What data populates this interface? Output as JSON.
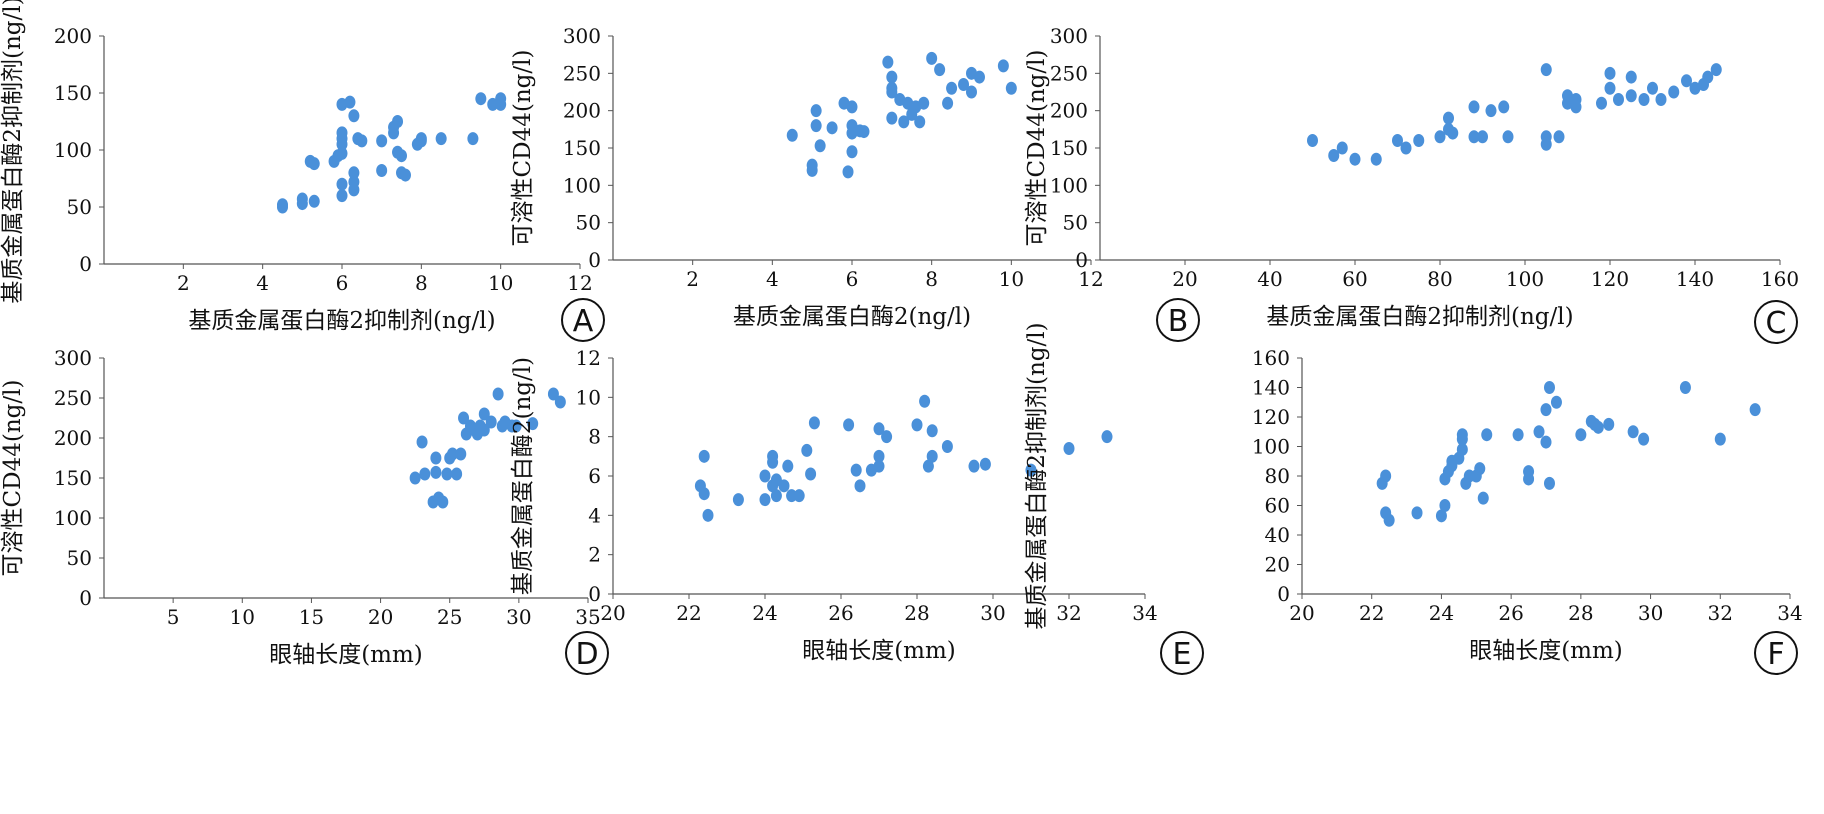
{
  "chart_data": [
    {
      "type": "scatter",
      "panel_label": "A",
      "xlabel": "基质金属蛋白酶2抑制剂(ng/l)",
      "ylabel": "基质金属蛋白酶2抑制剂(ng/l)",
      "xlim": [
        0,
        12
      ],
      "ylim": [
        0,
        200
      ],
      "xticks": [
        2,
        4,
        6,
        8,
        10,
        12
      ],
      "yticks": [
        0,
        50,
        100,
        150,
        200
      ],
      "point_color": "#4a90d9",
      "points": [
        [
          4.5,
          50
        ],
        [
          4.5,
          52
        ],
        [
          5,
          53
        ],
        [
          5,
          57
        ],
        [
          5.3,
          55
        ],
        [
          5.2,
          90
        ],
        [
          5.3,
          88
        ],
        [
          5.8,
          90
        ],
        [
          5.9,
          95
        ],
        [
          6,
          97
        ],
        [
          6,
          110
        ],
        [
          6,
          115
        ],
        [
          6,
          140
        ],
        [
          6.2,
          142
        ],
        [
          6,
          105
        ],
        [
          6,
          60
        ],
        [
          6,
          70
        ],
        [
          6.3,
          65
        ],
        [
          6.3,
          72
        ],
        [
          6.3,
          80
        ],
        [
          6.3,
          130
        ],
        [
          6.4,
          110
        ],
        [
          6.5,
          108
        ],
        [
          7,
          108
        ],
        [
          7,
          82
        ],
        [
          7.3,
          115
        ],
        [
          7.3,
          120
        ],
        [
          7.4,
          125
        ],
        [
          7.4,
          98
        ],
        [
          7.5,
          95
        ],
        [
          7.5,
          80
        ],
        [
          7.6,
          78
        ],
        [
          7.9,
          105
        ],
        [
          8,
          110
        ],
        [
          8,
          108
        ],
        [
          8.5,
          110
        ],
        [
          9.3,
          110
        ],
        [
          9.5,
          145
        ],
        [
          9.8,
          140
        ],
        [
          10,
          145
        ],
        [
          10,
          140
        ]
      ]
    },
    {
      "type": "scatter",
      "panel_label": "B",
      "xlabel": "基质金属蛋白酶2(ng/l)",
      "ylabel": "可溶性CD44(ng/l)",
      "xlim": [
        0,
        12
      ],
      "ylim": [
        0,
        300
      ],
      "xticks": [
        2,
        4,
        6,
        8,
        10,
        12
      ],
      "yticks": [
        0,
        50,
        100,
        150,
        200,
        250,
        300
      ],
      "point_color": "#4a90d9",
      "points": [
        [
          4.5,
          167
        ],
        [
          5,
          120
        ],
        [
          5,
          127
        ],
        [
          5.1,
          200
        ],
        [
          5.1,
          180
        ],
        [
          5.2,
          153
        ],
        [
          5.5,
          177
        ],
        [
          5.8,
          210
        ],
        [
          5.9,
          118
        ],
        [
          6,
          145
        ],
        [
          6,
          180
        ],
        [
          6,
          170
        ],
        [
          6,
          205
        ],
        [
          6.2,
          173
        ],
        [
          6.3,
          172
        ],
        [
          6.9,
          265
        ],
        [
          7,
          245
        ],
        [
          7,
          190
        ],
        [
          7,
          230
        ],
        [
          7,
          225
        ],
        [
          7.2,
          215
        ],
        [
          7.3,
          185
        ],
        [
          7.4,
          210
        ],
        [
          7.5,
          195
        ],
        [
          7.6,
          205
        ],
        [
          7.7,
          185
        ],
        [
          7.8,
          210
        ],
        [
          8,
          270
        ],
        [
          8.2,
          255
        ],
        [
          8.4,
          210
        ],
        [
          8.5,
          230
        ],
        [
          8.8,
          235
        ],
        [
          9,
          225
        ],
        [
          9,
          250
        ],
        [
          9.2,
          245
        ],
        [
          9.8,
          260
        ],
        [
          10,
          230
        ]
      ]
    },
    {
      "type": "scatter",
      "panel_label": "C",
      "xlabel": "基质金属蛋白酶2抑制剂(ng/l)",
      "ylabel": "可溶性CD44(ng/l)",
      "xlim": [
        0,
        160
      ],
      "ylim": [
        0,
        300
      ],
      "xticks": [
        20,
        40,
        60,
        80,
        100,
        120,
        140,
        160
      ],
      "yticks": [
        0,
        50,
        100,
        150,
        200,
        250,
        300
      ],
      "point_color": "#4a90d9",
      "points": [
        [
          50,
          160
        ],
        [
          55,
          140
        ],
        [
          57,
          150
        ],
        [
          60,
          135
        ],
        [
          65,
          135
        ],
        [
          70,
          160
        ],
        [
          72,
          150
        ],
        [
          75,
          160
        ],
        [
          80,
          165
        ],
        [
          82,
          190
        ],
        [
          82,
          175
        ],
        [
          83,
          170
        ],
        [
          88,
          205
        ],
        [
          88,
          165
        ],
        [
          90,
          165
        ],
        [
          92,
          200
        ],
        [
          95,
          205
        ],
        [
          96,
          165
        ],
        [
          105,
          255
        ],
        [
          105,
          165
        ],
        [
          105,
          155
        ],
        [
          108,
          165
        ],
        [
          110,
          220
        ],
        [
          110,
          210
        ],
        [
          112,
          205
        ],
        [
          112,
          215
        ],
        [
          118,
          210
        ],
        [
          120,
          250
        ],
        [
          120,
          230
        ],
        [
          122,
          215
        ],
        [
          125,
          245
        ],
        [
          125,
          220
        ],
        [
          128,
          215
        ],
        [
          130,
          230
        ],
        [
          132,
          215
        ],
        [
          135,
          225
        ],
        [
          138,
          240
        ],
        [
          140,
          230
        ],
        [
          142,
          235
        ],
        [
          143,
          245
        ],
        [
          145,
          255
        ]
      ]
    },
    {
      "type": "scatter",
      "panel_label": "D",
      "xlabel": "眼轴长度(mm)",
      "ylabel": "可溶性CD44(ng/l)",
      "xlim": [
        0,
        35
      ],
      "ylim": [
        0,
        300
      ],
      "xticks": [
        5,
        10,
        15,
        20,
        25,
        30,
        35
      ],
      "yticks": [
        0,
        50,
        100,
        150,
        200,
        250,
        300
      ],
      "point_color": "#4a90d9",
      "points": [
        [
          22.5,
          150
        ],
        [
          23,
          195
        ],
        [
          23.2,
          155
        ],
        [
          23.8,
          120
        ],
        [
          24,
          157
        ],
        [
          24,
          175
        ],
        [
          24.2,
          125
        ],
        [
          24.5,
          120
        ],
        [
          24.8,
          155
        ],
        [
          25,
          175
        ],
        [
          25.2,
          180
        ],
        [
          25.5,
          155
        ],
        [
          25.8,
          180
        ],
        [
          26,
          225
        ],
        [
          26.2,
          205
        ],
        [
          26.5,
          215
        ],
        [
          26.8,
          210
        ],
        [
          27,
          205
        ],
        [
          27.2,
          215
        ],
        [
          27.5,
          230
        ],
        [
          27.5,
          210
        ],
        [
          28,
          220
        ],
        [
          28.5,
          255
        ],
        [
          28.8,
          215
        ],
        [
          29,
          220
        ],
        [
          29.5,
          215
        ],
        [
          29.8,
          215
        ],
        [
          31,
          218
        ],
        [
          32.5,
          255
        ],
        [
          33,
          245
        ]
      ]
    },
    {
      "type": "scatter",
      "panel_label": "E",
      "xlabel": "眼轴长度(mm)",
      "ylabel": "基质金属蛋白酶2(ng/l)",
      "xlim": [
        20,
        34
      ],
      "ylim": [
        0,
        12
      ],
      "xticks": [
        20,
        22,
        24,
        26,
        28,
        30,
        32,
        34
      ],
      "yticks": [
        0,
        2,
        4,
        6,
        8,
        10,
        12
      ],
      "point_color": "#4a90d9",
      "points": [
        [
          22.3,
          5.5
        ],
        [
          22.4,
          5.1
        ],
        [
          22.4,
          7
        ],
        [
          22.5,
          4
        ],
        [
          23.3,
          4.8
        ],
        [
          24,
          4.8
        ],
        [
          24,
          6
        ],
        [
          24.2,
          5.5
        ],
        [
          24.2,
          7
        ],
        [
          24.2,
          6.7
        ],
        [
          24.3,
          5.8
        ],
        [
          24.3,
          5
        ],
        [
          24.5,
          5.5
        ],
        [
          24.6,
          6.5
        ],
        [
          24.7,
          5
        ],
        [
          24.9,
          5
        ],
        [
          25.1,
          7.3
        ],
        [
          25.2,
          6.1
        ],
        [
          25.3,
          8.7
        ],
        [
          26.2,
          8.6
        ],
        [
          26.4,
          6.3
        ],
        [
          26.5,
          5.5
        ],
        [
          26.8,
          6.3
        ],
        [
          27,
          8.4
        ],
        [
          27.2,
          8
        ],
        [
          27,
          6.5
        ],
        [
          27,
          7
        ],
        [
          28,
          8.6
        ],
        [
          28.2,
          9.8
        ],
        [
          28.3,
          6.5
        ],
        [
          28.4,
          7
        ],
        [
          28.4,
          8.3
        ],
        [
          28.8,
          7.5
        ],
        [
          29.5,
          6.5
        ],
        [
          29.8,
          6.6
        ],
        [
          31,
          6.3
        ],
        [
          32,
          7.4
        ],
        [
          33,
          8
        ]
      ]
    },
    {
      "type": "scatter",
      "panel_label": "F",
      "xlabel": "眼轴长度(mm)",
      "ylabel": "基质金属蛋白酶2抑制剂(ng/l)",
      "xlim": [
        20,
        34
      ],
      "ylim": [
        0,
        160
      ],
      "xticks": [
        20,
        22,
        24,
        26,
        28,
        30,
        32,
        34
      ],
      "yticks": [
        0,
        20,
        40,
        60,
        80,
        100,
        120,
        140,
        160
      ],
      "point_color": "#4a90d9",
      "points": [
        [
          22.3,
          75
        ],
        [
          22.4,
          80
        ],
        [
          22.4,
          55
        ],
        [
          22.5,
          50
        ],
        [
          23.3,
          55
        ],
        [
          24,
          53
        ],
        [
          24.1,
          60
        ],
        [
          24.1,
          78
        ],
        [
          24.2,
          83
        ],
        [
          24.3,
          90
        ],
        [
          24.3,
          87
        ],
        [
          24.5,
          92
        ],
        [
          24.6,
          98
        ],
        [
          24.6,
          108
        ],
        [
          24.6,
          105
        ],
        [
          24.7,
          75
        ],
        [
          24.8,
          80
        ],
        [
          25,
          80
        ],
        [
          25.1,
          85
        ],
        [
          25.2,
          65
        ],
        [
          25.3,
          108
        ],
        [
          26.2,
          108
        ],
        [
          26.5,
          78
        ],
        [
          26.5,
          83
        ],
        [
          26.8,
          110
        ],
        [
          27,
          103
        ],
        [
          27,
          125
        ],
        [
          27.1,
          140
        ],
        [
          27.1,
          75
        ],
        [
          27.3,
          130
        ],
        [
          28,
          108
        ],
        [
          28.3,
          117
        ],
        [
          28.4,
          115
        ],
        [
          28.5,
          113
        ],
        [
          28.8,
          115
        ],
        [
          29.5,
          110
        ],
        [
          29.8,
          105
        ],
        [
          31,
          140
        ],
        [
          32,
          105
        ],
        [
          33,
          125
        ]
      ]
    }
  ]
}
